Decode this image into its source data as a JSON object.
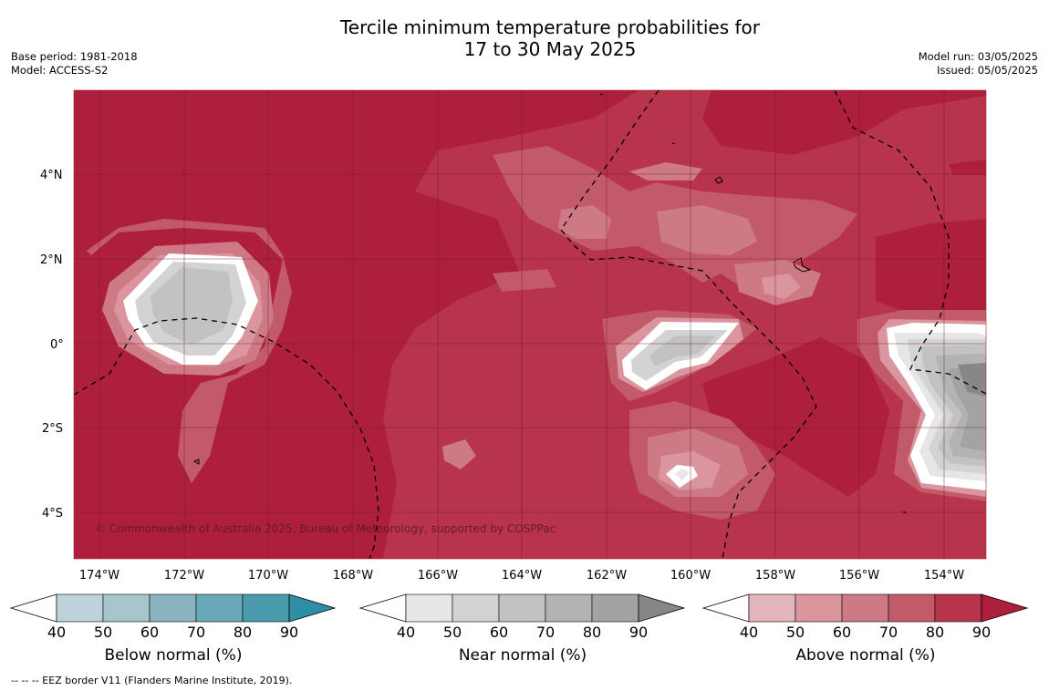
{
  "header": {
    "title_line1": "Tercile minimum temperature probabilities for",
    "title_line2": "17 to 30 May 2025",
    "base_period": "Base period: 1981-2018",
    "model": "Model: ACCESS-S2",
    "model_run": "Model run: 03/05/2025",
    "issued": "Issued: 05/05/2025"
  },
  "map": {
    "lat_labels": [
      "4°N",
      "2°N",
      "0°",
      "2°S",
      "4°S"
    ],
    "lon_labels": [
      "174°W",
      "172°W",
      "170°W",
      "168°W",
      "166°W",
      "164°W",
      "162°W",
      "160°W",
      "158°W",
      "156°W",
      "154°W"
    ],
    "copyright": "© Commonwealth of Australia 2025, Bureau of Meteorology, supported by COSPPac"
  },
  "colorbars": [
    {
      "title": "Below normal (%)",
      "ticks": [
        "40",
        "50",
        "60",
        "70",
        "80",
        "90"
      ],
      "colors": [
        "#ffffff",
        "#bed3d9",
        "#a6c6cc",
        "#89b5c2",
        "#6aaab8",
        "#4a9cad",
        "#2e8ea3"
      ]
    },
    {
      "title": "Near normal (%)",
      "ticks": [
        "40",
        "50",
        "60",
        "70",
        "80",
        "90"
      ],
      "colors": [
        "#ffffff",
        "#e6e6e6",
        "#d3d3d3",
        "#c2c2c2",
        "#b3b3b3",
        "#a3a3a3",
        "#878787"
      ]
    },
    {
      "title": "Above normal (%)",
      "ticks": [
        "40",
        "50",
        "60",
        "70",
        "80",
        "90"
      ],
      "colors": [
        "#ffffff",
        "#e3b5bd",
        "#da959f",
        "#ce7a86",
        "#c35a6a",
        "#b8334c",
        "#ae1f3d"
      ]
    }
  ],
  "footer": {
    "eez_note": "--  --  -- EEZ border V11 (Flanders Marine Institute, 2019)."
  }
}
